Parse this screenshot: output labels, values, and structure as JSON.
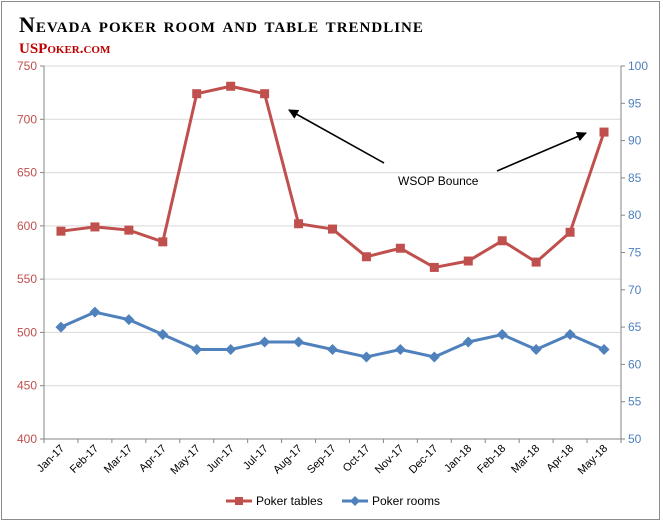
{
  "header": {
    "title": "Nevada poker room and table trendline",
    "brand": "USPoker.com"
  },
  "colors": {
    "tables": "#c0504d",
    "rooms": "#4f81bd",
    "grid": "#d9d9d9",
    "axis": "#868686"
  },
  "chart_data": {
    "type": "line",
    "title": "Nevada poker room and table trendline",
    "categories": [
      "Jan-17",
      "Feb-17",
      "Mar-17",
      "Apr-17",
      "May-17",
      "Jun-17",
      "Jul-17",
      "Aug-17",
      "Sep-17",
      "Oct-17",
      "Nov-17",
      "Dec-17",
      "Jan-18",
      "Feb-18",
      "Mar-18",
      "Apr-18",
      "May-18"
    ],
    "series": [
      {
        "name": "Poker tables",
        "axis": "left",
        "marker": "square",
        "values": [
          595,
          599,
          596,
          585,
          724,
          731,
          724,
          602,
          597,
          571,
          579,
          561,
          567,
          586,
          566,
          594,
          688
        ]
      },
      {
        "name": "Poker rooms",
        "axis": "right",
        "marker": "diamond",
        "values": [
          65,
          67,
          66,
          64,
          62,
          62,
          63,
          63,
          62,
          61,
          62,
          61,
          63,
          64,
          62,
          64,
          62
        ]
      }
    ],
    "y_left": {
      "min": 400,
      "max": 750,
      "step": 50,
      "ticks": [
        "400",
        "450",
        "500",
        "550",
        "600",
        "650",
        "700",
        "750"
      ]
    },
    "y_right": {
      "min": 50,
      "max": 100,
      "step": 5,
      "ticks": [
        "50",
        "55",
        "60",
        "65",
        "70",
        "75",
        "80",
        "85",
        "90",
        "95",
        "100"
      ]
    },
    "grid": true,
    "legend": "bottom",
    "annotations": [
      {
        "text": "WSOP Bounce"
      }
    ]
  }
}
